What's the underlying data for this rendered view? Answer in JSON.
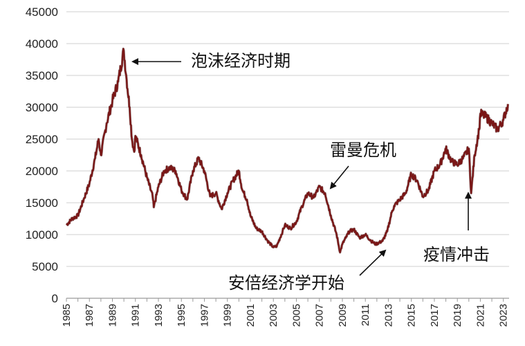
{
  "chart_data": {
    "type": "line",
    "title": "",
    "xlabel": "",
    "ylabel": "",
    "xlim": [
      1985,
      2023.5
    ],
    "ylim": [
      0,
      45000
    ],
    "grid": "horizontal",
    "y_ticks": [
      0,
      5000,
      10000,
      15000,
      20000,
      25000,
      30000,
      35000,
      40000,
      45000
    ],
    "y_tick_labels": [
      "0",
      "5000",
      "10000",
      "15000",
      "20000",
      "25000",
      "30000",
      "35000",
      "40000",
      "45000"
    ],
    "x_tick_labels": [
      "1985",
      "1987",
      "1989",
      "1991",
      "1993",
      "1995",
      "1997",
      "1999",
      "2001",
      "2003",
      "2005",
      "2007",
      "2009",
      "2011",
      "2013",
      "2015",
      "2017",
      "2019",
      "2021",
      "2023"
    ],
    "series": [
      {
        "color": "#7a1616",
        "x": [
          1985.0,
          1985.5,
          1986.0,
          1986.5,
          1987.0,
          1987.5,
          1987.8,
          1988.0,
          1988.5,
          1989.0,
          1989.5,
          1989.99,
          1990.2,
          1990.5,
          1990.7,
          1990.9,
          1991.0,
          1991.5,
          1992.0,
          1992.5,
          1992.6,
          1993.0,
          1993.5,
          1994.0,
          1994.5,
          1995.0,
          1995.5,
          1996.0,
          1996.5,
          1997.0,
          1997.5,
          1998.0,
          1998.5,
          1999.0,
          1999.5,
          2000.0,
          2000.3,
          2000.7,
          2001.0,
          2001.5,
          2002.0,
          2002.5,
          2003.0,
          2003.3,
          2003.8,
          2004.0,
          2004.5,
          2005.0,
          2005.5,
          2006.0,
          2006.5,
          2007.0,
          2007.5,
          2008.0,
          2008.5,
          2008.8,
          2009.0,
          2009.3,
          2009.6,
          2010.0,
          2010.5,
          2011.0,
          2011.5,
          2011.9,
          2012.5,
          2012.9,
          2013.3,
          2013.5,
          2014.0,
          2014.5,
          2015.0,
          2015.5,
          2016.0,
          2016.5,
          2017.0,
          2017.5,
          2018.0,
          2018.5,
          2019.0,
          2019.5,
          2020.0,
          2020.2,
          2020.5,
          2020.9,
          2021.0,
          2021.5,
          2022.0,
          2022.5,
          2023.0,
          2023.4
        ],
        "y": [
          11500,
          12500,
          13000,
          15500,
          18000,
          22000,
          25000,
          22500,
          27500,
          31000,
          34000,
          38900,
          35000,
          30000,
          25000,
          23000,
          25500,
          22500,
          19000,
          16000,
          14300,
          17500,
          20000,
          20500,
          20000,
          17000,
          15500,
          20000,
          22000,
          20000,
          16000,
          16500,
          14000,
          16500,
          18500,
          20000,
          17000,
          15500,
          13000,
          11000,
          10500,
          9000,
          8000,
          8200,
          10500,
          11500,
          11000,
          12000,
          14500,
          16500,
          15800,
          17500,
          16500,
          13000,
          10000,
          7200,
          8500,
          9500,
          10500,
          10800,
          9500,
          10000,
          9000,
          8500,
          9000,
          10500,
          13500,
          14500,
          15500,
          16500,
          19500,
          18500,
          16000,
          17000,
          20000,
          21000,
          23500,
          21500,
          21000,
          22000,
          23500,
          16500,
          22500,
          26500,
          29000,
          28500,
          27500,
          26500,
          28000,
          30500
        ]
      }
    ],
    "annotations": [
      {
        "text": "泡沫经济时期"
      },
      {
        "text": "雷曼危机"
      },
      {
        "text": "安倍经济学开始"
      },
      {
        "text": "疫情冲击"
      }
    ]
  }
}
